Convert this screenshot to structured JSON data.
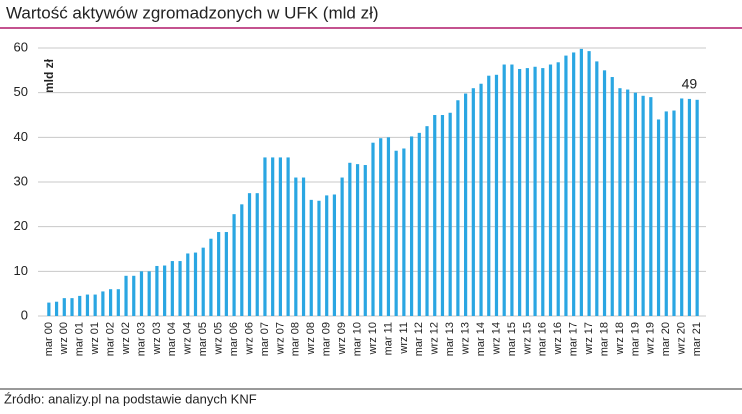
{
  "chart_data": {
    "type": "bar",
    "title": "Wartość aktywów zgromadzonych w UFK (mld zł)",
    "y_axis_label": "mld zł",
    "source": "Źródło: analizy.pl na podstawie danych KNF",
    "categories": [
      "mar 00",
      null,
      "wrz 00",
      null,
      "mar 01",
      null,
      "wrz 01",
      null,
      "mar 02",
      null,
      "wrz 02",
      null,
      "mar 03",
      null,
      "wrz 03",
      null,
      "mar 04",
      null,
      "wrz 04",
      null,
      "mar 05",
      null,
      "wrz 05",
      null,
      "mar 06",
      null,
      "wrz 06",
      null,
      "mar 07",
      null,
      "wrz 07",
      null,
      "mar 08",
      null,
      "wrz 08",
      null,
      "mar 09",
      null,
      "wrz 09",
      null,
      "mar 10",
      null,
      "wrz 10",
      null,
      "mar 11",
      null,
      "wrz 11",
      null,
      "mar 12",
      null,
      "wrz 12",
      null,
      "mar 13",
      null,
      "wrz 13",
      null,
      "mar 14",
      null,
      "wrz 14",
      null,
      "mar 15",
      null,
      "wrz 15",
      null,
      "mar 16",
      null,
      "wrz 16",
      null,
      "mar 17",
      null,
      "wrz 17",
      null,
      "mar 18",
      null,
      "wrz 18",
      null,
      "mar 19",
      null,
      "wrz 19",
      null,
      "mar 20",
      null,
      "wrz 20",
      null,
      "mar 21"
    ],
    "values": [
      3.0,
      3.2,
      4.0,
      4.0,
      4.5,
      4.8,
      4.8,
      5.5,
      6.0,
      6.0,
      9.0,
      9.0,
      10.0,
      10.0,
      11.2,
      11.3,
      12.3,
      12.3,
      14.0,
      14.2,
      15.3,
      17.3,
      18.8,
      18.8,
      22.8,
      25.0,
      27.5,
      27.5,
      35.5,
      35.5,
      35.5,
      35.5,
      31.0,
      31.0,
      26.0,
      25.8,
      27.0,
      27.2,
      31.0,
      34.3,
      34.0,
      33.8,
      38.8,
      39.8,
      40.0,
      37.0,
      37.5,
      40.2,
      41.0,
      42.5,
      45.0,
      45.0,
      45.5,
      48.3,
      49.8,
      51.0,
      52.0,
      53.8,
      54.0,
      56.3,
      56.3,
      55.3,
      55.5,
      55.8,
      55.5,
      56.3,
      56.8,
      58.3,
      59.0,
      59.8,
      59.3,
      57.0,
      55.0,
      53.5,
      51.0,
      50.7,
      50.0,
      49.3,
      49.0,
      44.0,
      45.8,
      46.0,
      48.7,
      48.6,
      48.4
    ],
    "value_labels": [
      null,
      null,
      null,
      null,
      null,
      null,
      null,
      null,
      null,
      null,
      null,
      null,
      null,
      null,
      null,
      null,
      null,
      null,
      null,
      null,
      null,
      null,
      null,
      null,
      null,
      null,
      null,
      null,
      null,
      null,
      null,
      null,
      null,
      null,
      null,
      null,
      null,
      null,
      null,
      null,
      null,
      null,
      null,
      null,
      null,
      null,
      null,
      null,
      null,
      null,
      null,
      null,
      null,
      null,
      null,
      null,
      null,
      null,
      null,
      null,
      null,
      null,
      null,
      null,
      null,
      null,
      null,
      null,
      null,
      null,
      null,
      null,
      null,
      null,
      null,
      null,
      null,
      null,
      null,
      null,
      null,
      null,
      null,
      "49",
      null
    ],
    "color": "#2aa6e2",
    "ylim": [
      0,
      60
    ],
    "yticks": [
      0,
      10,
      20,
      30,
      40,
      50,
      60
    ],
    "grid": true
  }
}
